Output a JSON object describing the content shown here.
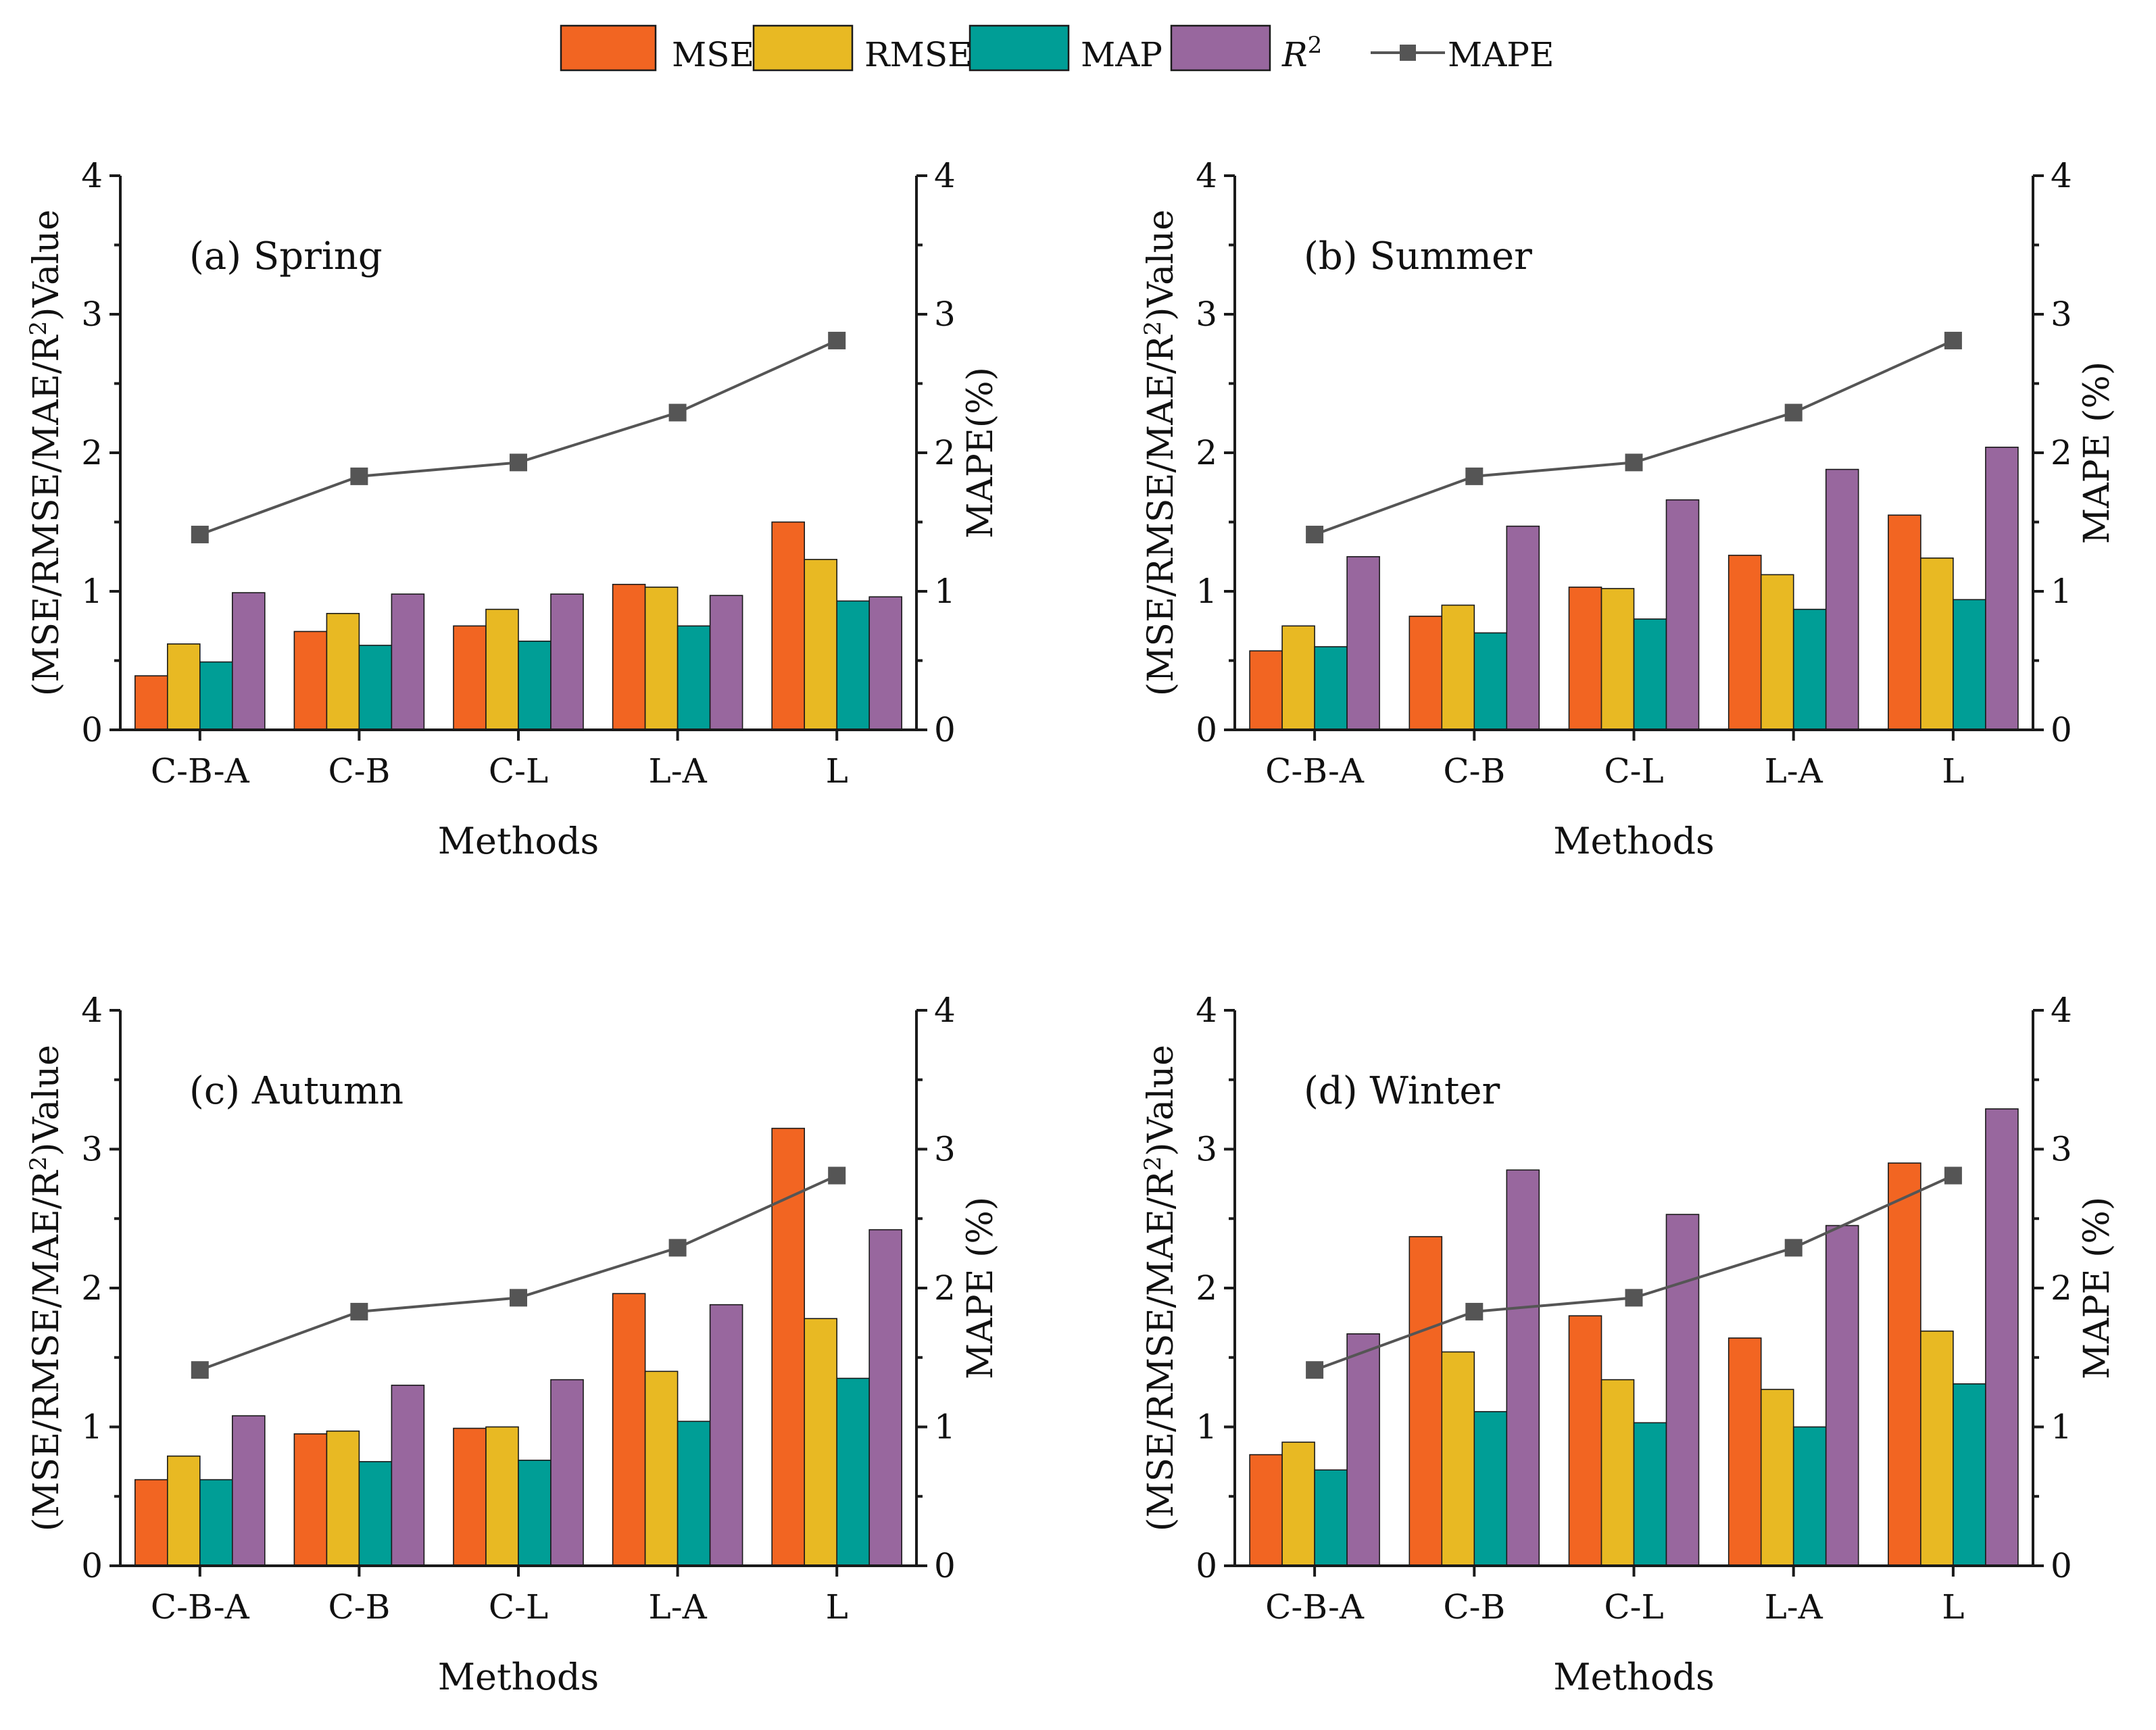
{
  "legend": [
    {
      "label": "MSE",
      "color": "#f26522",
      "kind": "bar"
    },
    {
      "label": "RMSE",
      "color": "#e8b923",
      "kind": "bar"
    },
    {
      "label": "MAP",
      "color": "#009e96",
      "kind": "bar"
    },
    {
      "label": "R",
      "sup": "2",
      "color": "#98679e",
      "kind": "bar",
      "italic": true
    },
    {
      "label": "MAPE",
      "color": "#555555",
      "kind": "line"
    }
  ],
  "chart_data": [
    {
      "type": "bar",
      "title": "(a) Spring",
      "xlabel": "Methods",
      "ylabel": "(MSE/RMSE/MAE/R",
      "ylabel_sup": "2",
      "ylabel_end": ")Value",
      "y2label": "MAPE(%)",
      "ylim": [
        0,
        4
      ],
      "y2lim": [
        0,
        4
      ],
      "yticks": [
        "0",
        "1",
        "2",
        "3",
        "4"
      ],
      "categories": [
        "C-B-A",
        "C-B",
        "C-L",
        "L-A",
        "L"
      ],
      "series": [
        {
          "name": "MSE",
          "values": [
            0.39,
            0.71,
            0.75,
            1.05,
            1.5
          ]
        },
        {
          "name": "RMSE",
          "values": [
            0.62,
            0.84,
            0.87,
            1.03,
            1.23
          ]
        },
        {
          "name": "MAP",
          "values": [
            0.49,
            0.61,
            0.64,
            0.75,
            0.93
          ]
        },
        {
          "name": "R2",
          "values": [
            0.99,
            0.98,
            0.98,
            0.97,
            0.96
          ]
        }
      ],
      "line": {
        "name": "MAPE",
        "axis": "right",
        "values": [
          1.41,
          1.83,
          1.93,
          2.29,
          2.81
        ]
      }
    },
    {
      "type": "bar",
      "title": "(b) Summer",
      "xlabel": "Methods",
      "ylabel": "(MSE/RMSE/MAE/R",
      "ylabel_sup": "2",
      "ylabel_end": ")Value",
      "y2label": "MAPE (%)",
      "ylim": [
        0,
        4
      ],
      "y2lim": [
        0,
        4
      ],
      "yticks": [
        "0",
        "1",
        "2",
        "3",
        "4"
      ],
      "categories": [
        "C-B-A",
        "C-B",
        "C-L",
        "L-A",
        "L"
      ],
      "series": [
        {
          "name": "MSE",
          "values": [
            0.57,
            0.82,
            1.03,
            1.26,
            1.55
          ]
        },
        {
          "name": "RMSE",
          "values": [
            0.75,
            0.9,
            1.02,
            1.12,
            1.24
          ]
        },
        {
          "name": "MAP",
          "values": [
            0.6,
            0.7,
            0.8,
            0.87,
            0.94
          ]
        },
        {
          "name": "R2",
          "values": [
            1.25,
            1.47,
            1.66,
            1.88,
            2.04
          ]
        }
      ],
      "line": {
        "name": "MAPE",
        "axis": "right",
        "values": [
          1.41,
          1.83,
          1.93,
          2.29,
          2.81
        ]
      }
    },
    {
      "type": "bar",
      "title": "(c) Autumn",
      "xlabel": "Methods",
      "ylabel": "(MSE/RMSE/MAE/R",
      "ylabel_sup": "2",
      "ylabel_end": ")Value",
      "y2label": "MAPE (%)",
      "ylim": [
        0,
        4
      ],
      "y2lim": [
        0,
        4
      ],
      "yticks": [
        "0",
        "1",
        "2",
        "3",
        "4"
      ],
      "categories": [
        "C-B-A",
        "C-B",
        "C-L",
        "L-A",
        "L"
      ],
      "series": [
        {
          "name": "MSE",
          "values": [
            0.62,
            0.95,
            0.99,
            1.96,
            3.15
          ]
        },
        {
          "name": "RMSE",
          "values": [
            0.79,
            0.97,
            1.0,
            1.4,
            1.78
          ]
        },
        {
          "name": "MAP",
          "values": [
            0.62,
            0.75,
            0.76,
            1.04,
            1.35
          ]
        },
        {
          "name": "R2",
          "values": [
            1.08,
            1.3,
            1.34,
            1.88,
            2.42
          ]
        }
      ],
      "line": {
        "name": "MAPE",
        "axis": "right",
        "values": [
          1.41,
          1.83,
          1.93,
          2.29,
          2.81
        ]
      }
    },
    {
      "type": "bar",
      "title": "(d) Winter",
      "xlabel": "Methods",
      "ylabel": "(MSE/RMSE/MAE/R",
      "ylabel_sup": "2",
      "ylabel_end": ")Value",
      "y2label": "MAPE (%)",
      "ylim": [
        0,
        4
      ],
      "y2lim": [
        0,
        4
      ],
      "yticks": [
        "0",
        "1",
        "2",
        "3",
        "4"
      ],
      "categories": [
        "C-B-A",
        "C-B",
        "C-L",
        "L-A",
        "L"
      ],
      "series": [
        {
          "name": "MSE",
          "values": [
            0.8,
            2.37,
            1.8,
            1.64,
            2.9
          ]
        },
        {
          "name": "RMSE",
          "values": [
            0.89,
            1.54,
            1.34,
            1.27,
            1.69
          ]
        },
        {
          "name": "MAP",
          "values": [
            0.69,
            1.11,
            1.03,
            1.0,
            1.31
          ]
        },
        {
          "name": "R2",
          "values": [
            1.67,
            2.85,
            2.53,
            2.45,
            3.29
          ]
        }
      ],
      "line": {
        "name": "MAPE",
        "axis": "right",
        "values": [
          1.41,
          1.83,
          1.93,
          2.29,
          2.81
        ]
      }
    }
  ]
}
